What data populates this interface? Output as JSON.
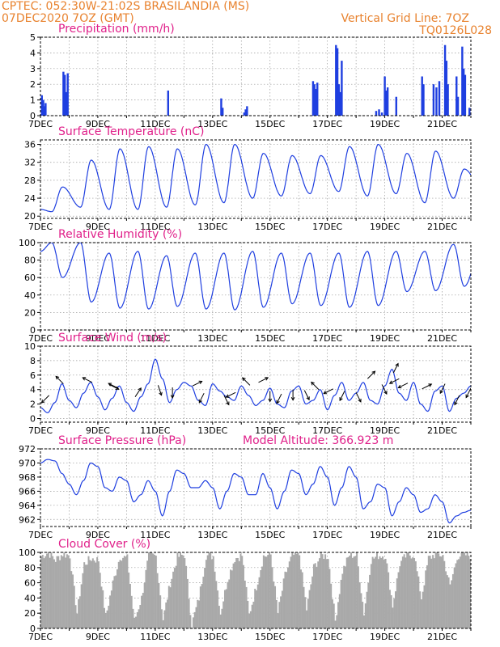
{
  "header": {
    "line1_left": "CPTEC:   052:30W-21:02S   BRASILANDIA (MS)",
    "line2_left": "07DEC2020 7OZ (GMT)",
    "line2_right": "Vertical Grid Line: 7OZ",
    "line3_right": "TQ0126L028"
  },
  "colors": {
    "header": "#e8822e",
    "title": "#e0208a",
    "series": "#1f3fe0",
    "cloud": "#a9a9a9",
    "frame": "#000000",
    "grid": "#9a9a9a"
  },
  "chart_data": [
    {
      "type": "bar",
      "title": "Precipitation (mm/h)",
      "xticks": [
        "7DEC",
        "9DEC",
        "11DEC",
        "13DEC",
        "15DEC",
        "17DEC",
        "19DEC",
        "21DEC"
      ],
      "xtick_days": [
        0,
        2,
        4,
        6,
        8,
        10,
        12,
        14
      ],
      "xlim": [
        0,
        15
      ],
      "ylim": [
        0,
        5
      ],
      "yticks": [
        0,
        1,
        2,
        3,
        4,
        5
      ],
      "grid": true,
      "events": [
        [
          0.05,
          1.3
        ],
        [
          0.1,
          1.0
        ],
        [
          0.15,
          0.6
        ],
        [
          0.18,
          0.8
        ],
        [
          0.8,
          2.8
        ],
        [
          0.85,
          2.6
        ],
        [
          0.9,
          1.5
        ],
        [
          0.95,
          2.7
        ],
        [
          4.45,
          1.6
        ],
        [
          6.3,
          1.1
        ],
        [
          6.35,
          0.5
        ],
        [
          7.1,
          0.2
        ],
        [
          7.15,
          0.4
        ],
        [
          7.2,
          0.6
        ],
        [
          9.5,
          2.2
        ],
        [
          9.55,
          2.0
        ],
        [
          9.6,
          1.7
        ],
        [
          9.65,
          2.1
        ],
        [
          10.3,
          4.5
        ],
        [
          10.35,
          4.3
        ],
        [
          10.4,
          2.0
        ],
        [
          10.45,
          1.5
        ],
        [
          10.5,
          3.5
        ],
        [
          11.7,
          0.3
        ],
        [
          11.8,
          0.4
        ],
        [
          11.9,
          0.2
        ],
        [
          12.0,
          2.5
        ],
        [
          12.05,
          1.6
        ],
        [
          12.1,
          1.8
        ],
        [
          12.4,
          1.2
        ],
        [
          13.3,
          2.5
        ],
        [
          13.35,
          2.0
        ],
        [
          13.7,
          2.0
        ],
        [
          13.8,
          1.8
        ],
        [
          13.9,
          2.2
        ],
        [
          14.1,
          4.5
        ],
        [
          14.15,
          3.5
        ],
        [
          14.2,
          2.0
        ],
        [
          14.5,
          2.5
        ],
        [
          14.55,
          1.2
        ],
        [
          14.7,
          4.4
        ],
        [
          14.75,
          3.0
        ],
        [
          14.8,
          2.6
        ],
        [
          14.95,
          0.5
        ]
      ]
    },
    {
      "type": "line",
      "title": "Surface Temperature (nC)",
      "xticks": [
        "7DEC",
        "9DEC",
        "11DEC",
        "13DEC",
        "15DEC",
        "17DEC",
        "19DEC",
        "21DEC"
      ],
      "xtick_days": [
        0,
        2,
        4,
        6,
        8,
        10,
        12,
        14
      ],
      "xlim": [
        0,
        15
      ],
      "ylim": [
        19.5,
        37
      ],
      "yticks": [
        20,
        24,
        28,
        32,
        36
      ],
      "grid": true,
      "min_hour": 9.5,
      "max_hour": 18.5,
      "daily_min": [
        21.0,
        22.0,
        21.5,
        21.5,
        22.0,
        22.5,
        23.0,
        24.0,
        24.5,
        25.0,
        25.5,
        24.5,
        25.0,
        23.0,
        24.0,
        26.0
      ],
      "daily_max": [
        26.5,
        32.5,
        35.0,
        35.5,
        35.0,
        36.0,
        36.0,
        34.0,
        33.5,
        33.5,
        35.5,
        36.0,
        34.0,
        34.5,
        30.5,
        30.0
      ]
    },
    {
      "type": "line",
      "title": "Relative Humidity (%)",
      "xticks": [
        "7DEC",
        "9DEC",
        "11DEC",
        "13DEC",
        "15DEC",
        "17DEC",
        "19DEC",
        "21DEC"
      ],
      "xtick_days": [
        0,
        2,
        4,
        6,
        8,
        10,
        12,
        14
      ],
      "xlim": [
        0,
        15
      ],
      "ylim": [
        0,
        100
      ],
      "yticks": [
        0,
        20,
        40,
        60,
        80,
        100
      ],
      "grid": true,
      "min_hour": 18.5,
      "max_hour": 9.5,
      "daily_low": [
        60,
        32,
        25,
        24,
        27,
        24,
        23,
        26,
        30,
        28,
        26,
        28,
        44,
        45,
        50,
        55
      ],
      "daily_high": [
        100,
        100,
        88,
        90,
        85,
        88,
        88,
        90,
        88,
        88,
        88,
        90,
        90,
        90,
        98,
        100
      ]
    },
    {
      "type": "line",
      "title": "Surface Wind (m/s)",
      "xticks": [
        "7DEC",
        "9DEC",
        "11DEC",
        "13DEC",
        "15DEC",
        "17DEC",
        "19DEC",
        "21DEC"
      ],
      "xtick_days": [
        0,
        2,
        4,
        6,
        8,
        10,
        12,
        14
      ],
      "xlim": [
        0,
        15
      ],
      "ylim": [
        -0.5,
        10
      ],
      "yticks": [
        0,
        2,
        4,
        6,
        8,
        10
      ],
      "grid": true,
      "x": [
        0,
        0.25,
        0.5,
        0.75,
        1,
        1.25,
        1.5,
        1.75,
        2,
        2.25,
        2.5,
        2.75,
        3,
        3.25,
        3.5,
        3.75,
        4,
        4.25,
        4.5,
        4.75,
        5,
        5.25,
        5.5,
        5.75,
        6,
        6.25,
        6.5,
        6.75,
        7,
        7.25,
        7.5,
        7.75,
        8,
        8.25,
        8.5,
        8.75,
        9,
        9.25,
        9.5,
        9.75,
        10,
        10.25,
        10.5,
        10.75,
        11,
        11.25,
        11.5,
        11.75,
        12,
        12.25,
        12.5,
        12.75,
        13,
        13.25,
        13.5,
        13.75,
        14,
        14.25,
        14.5,
        14.75,
        15
      ],
      "values": [
        1.5,
        0.8,
        2.2,
        4.8,
        2.5,
        1.5,
        3.5,
        5.0,
        3.0,
        1.2,
        2.8,
        4.5,
        2.2,
        1.0,
        3.0,
        4.8,
        8.2,
        5.5,
        2.2,
        4.0,
        5.0,
        4.5,
        2.5,
        1.8,
        4.8,
        3.8,
        3.0,
        2.5,
        4.5,
        3.2,
        1.8,
        2.5,
        4.2,
        2.0,
        1.5,
        3.8,
        4.5,
        2.0,
        2.5,
        4.0,
        1.2,
        3.2,
        5.0,
        2.5,
        3.5,
        5.0,
        2.5,
        2.0,
        4.5,
        6.8,
        3.5,
        2.5,
        5.0,
        2.0,
        1.0,
        3.8,
        4.5,
        1.0,
        2.8,
        3.5,
        4.5
      ],
      "arrows": [
        [
          0.3,
          3.2,
          -2,
          -2
        ],
        [
          0.8,
          4.8,
          -2,
          2
        ],
        [
          1.8,
          5.0,
          -2,
          1
        ],
        [
          2.4,
          4.7,
          2,
          -1
        ],
        [
          2.7,
          4.2,
          -2,
          1
        ],
        [
          3.3,
          3.0,
          2,
          3
        ],
        [
          4.1,
          4.6,
          1,
          -3
        ],
        [
          4.6,
          4.3,
          0,
          -3
        ],
        [
          5.3,
          4.5,
          2,
          1
        ],
        [
          5.7,
          3.5,
          -1,
          -2
        ],
        [
          6.4,
          3.2,
          1,
          -2
        ],
        [
          6.8,
          3.6,
          -2,
          -1
        ],
        [
          7.3,
          4.6,
          -2,
          2
        ],
        [
          7.6,
          5.0,
          2,
          1
        ],
        [
          8.0,
          3.8,
          0,
          -2
        ],
        [
          8.4,
          3.4,
          -1,
          -2
        ],
        [
          8.8,
          4.0,
          0,
          -3
        ],
        [
          9.2,
          3.9,
          1,
          -2
        ],
        [
          9.7,
          4.0,
          -2,
          2
        ],
        [
          10.2,
          4.1,
          -2,
          -1
        ],
        [
          10.6,
          3.8,
          -1,
          -2
        ],
        [
          11.0,
          3.6,
          1,
          -2
        ],
        [
          11.4,
          5.5,
          2,
          2
        ],
        [
          11.9,
          4.7,
          1,
          -2
        ],
        [
          12.3,
          6.3,
          1,
          2
        ],
        [
          12.5,
          5.5,
          -2,
          -1
        ],
        [
          12.8,
          4.9,
          -2,
          -1
        ],
        [
          13.3,
          4.1,
          2,
          1
        ],
        [
          14.1,
          4.8,
          -1,
          -2
        ],
        [
          14.6,
          3.2,
          -1,
          -2
        ],
        [
          15.0,
          4.2,
          -1,
          -2
        ]
      ]
    },
    {
      "type": "line",
      "title": "Surface Pressure (hPa)",
      "annotation": "Model Altitude: 366.923  m",
      "xticks": [
        "7DEC",
        "9DEC",
        "11DEC",
        "13DEC",
        "15DEC",
        "17DEC",
        "19DEC",
        "21DEC"
      ],
      "xtick_days": [
        0,
        2,
        4,
        6,
        8,
        10,
        12,
        14
      ],
      "xlim": [
        0,
        15
      ],
      "ylim": [
        961,
        972
      ],
      "yticks": [
        962,
        964,
        966,
        968,
        970,
        972
      ],
      "grid": true,
      "x": [
        0,
        0.25,
        0.5,
        0.75,
        1,
        1.25,
        1.5,
        1.75,
        2,
        2.25,
        2.5,
        2.75,
        3,
        3.25,
        3.5,
        3.75,
        4,
        4.25,
        4.5,
        4.75,
        5,
        5.25,
        5.5,
        5.75,
        6,
        6.25,
        6.5,
        6.75,
        7,
        7.25,
        7.5,
        7.75,
        8,
        8.25,
        8.5,
        8.75,
        9,
        9.25,
        9.5,
        9.75,
        10,
        10.25,
        10.5,
        10.75,
        11,
        11.25,
        11.5,
        11.75,
        12,
        12.25,
        12.5,
        12.75,
        13,
        13.25,
        13.5,
        13.75,
        14,
        14.25,
        14.5,
        14.75,
        15
      ],
      "values": [
        970.0,
        970.5,
        970.3,
        968.5,
        967.0,
        965.5,
        967.5,
        970.0,
        969.5,
        966.5,
        966.0,
        968.0,
        967.5,
        964.5,
        965.5,
        967.5,
        966.0,
        962.5,
        966.0,
        969.0,
        968.5,
        966.5,
        966.5,
        967.5,
        966.5,
        963.5,
        966.0,
        968.5,
        968.0,
        965.5,
        965.5,
        968.5,
        966.5,
        963.5,
        966.0,
        969.0,
        968.5,
        965.5,
        967.0,
        969.5,
        968.0,
        964.0,
        966.5,
        969.5,
        968.0,
        963.5,
        964.5,
        967.0,
        966.5,
        962.5,
        964.5,
        966.5,
        965.5,
        963.0,
        963.5,
        965.5,
        964.5,
        961.5,
        962.5,
        963.0,
        963.3
      ]
    },
    {
      "type": "bar",
      "title": "Cloud Cover (%)",
      "xticks": [
        "7DEC",
        "9DEC",
        "11DEC",
        "13DEC",
        "15DEC",
        "17DEC",
        "19DEC",
        "21DEC"
      ],
      "xtick_days": [
        0,
        2,
        4,
        6,
        8,
        10,
        12,
        14
      ],
      "xlim": [
        0,
        15
      ],
      "ylim": [
        0,
        100
      ],
      "yticks": [
        0,
        20,
        40,
        60,
        80,
        100
      ],
      "grid": true,
      "x": [
        0,
        0.25,
        0.5,
        0.75,
        1,
        1.25,
        1.5,
        1.75,
        2,
        2.25,
        2.5,
        2.75,
        3,
        3.25,
        3.5,
        3.75,
        4,
        4.25,
        4.5,
        4.75,
        5,
        5.25,
        5.5,
        5.75,
        6,
        6.25,
        6.5,
        6.75,
        7,
        7.25,
        7.5,
        7.75,
        8,
        8.25,
        8.5,
        8.75,
        9,
        9.25,
        9.5,
        9.75,
        10,
        10.25,
        10.5,
        10.75,
        11,
        11.25,
        11.5,
        11.75,
        12,
        12.25,
        12.5,
        12.75,
        13,
        13.25,
        13.5,
        13.75,
        14,
        14.25,
        14.5,
        14.75,
        15
      ],
      "values": [
        95,
        100,
        90,
        98,
        96,
        20,
        85,
        92,
        90,
        15,
        60,
        95,
        92,
        10,
        40,
        96,
        95,
        12,
        60,
        94,
        97,
        5,
        40,
        96,
        95,
        20,
        65,
        92,
        96,
        18,
        55,
        95,
        97,
        20,
        70,
        96,
        97,
        25,
        80,
        96,
        95,
        10,
        75,
        97,
        96,
        20,
        90,
        96,
        96,
        30,
        85,
        97,
        97,
        40,
        92,
        98,
        96,
        55,
        95,
        97,
        96
      ]
    }
  ]
}
